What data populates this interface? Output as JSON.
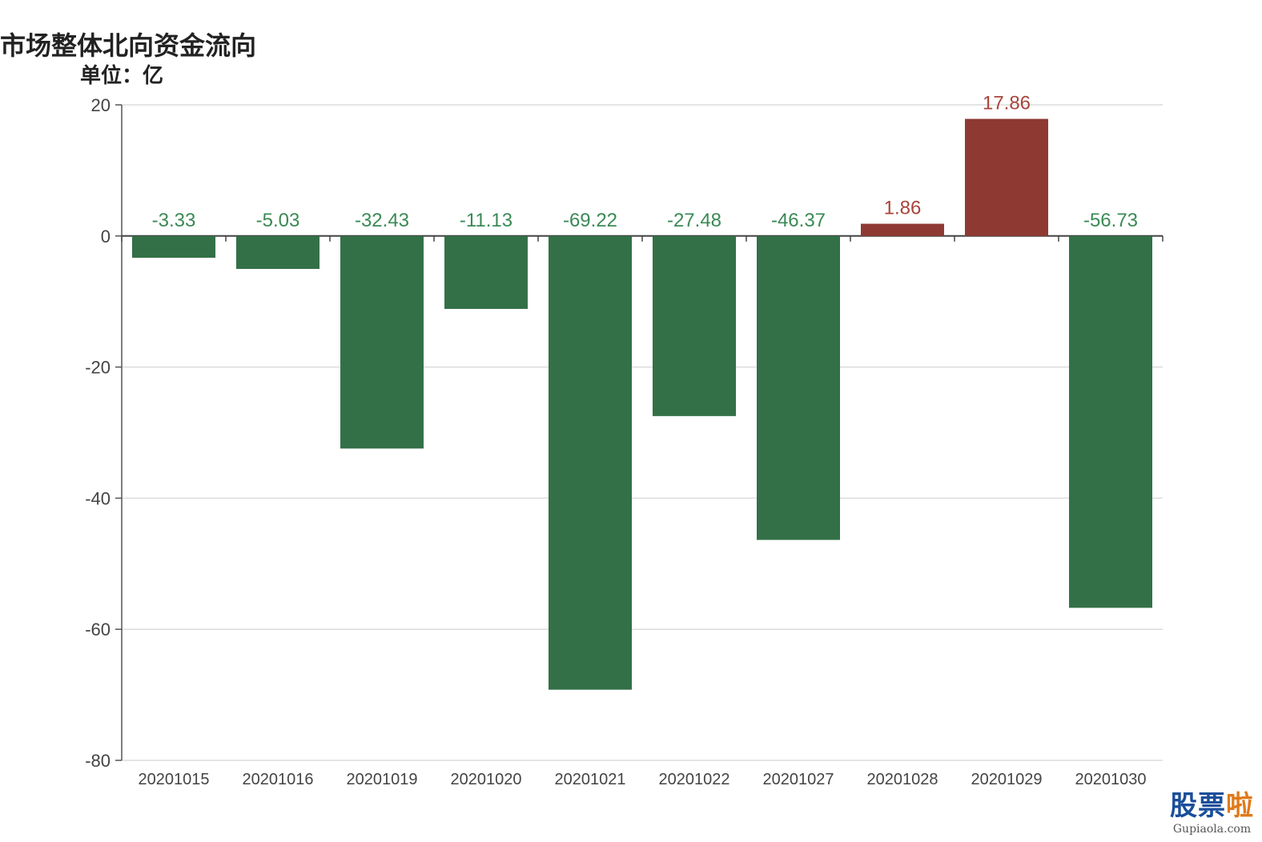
{
  "chart_data": {
    "type": "bar",
    "title": "市场整体北向资金流向",
    "unit_label": "单位：亿",
    "categories": [
      "20201015",
      "20201016",
      "20201019",
      "20201020",
      "20201021",
      "20201022",
      "20201027",
      "20201028",
      "20201029",
      "20201030"
    ],
    "values": [
      -3.33,
      -5.03,
      -32.43,
      -11.13,
      -69.22,
      -27.48,
      -46.37,
      1.86,
      17.86,
      -56.73
    ],
    "value_labels": [
      "-3.33",
      "-5.03",
      "-32.43",
      "-11.13",
      "-69.22",
      "-27.48",
      "-46.37",
      "1.86",
      "17.86",
      "-56.73"
    ],
    "ylim": [
      -80,
      20
    ],
    "yticks": [
      20,
      0,
      -20,
      -40,
      -60,
      -80
    ],
    "grid": true,
    "colors": {
      "positive": "#8e3a33",
      "negative": "#337047",
      "positive_label": "#a8443c",
      "negative_label": "#3a8a55"
    }
  },
  "watermark": {
    "main_a": "股票",
    "main_b": "啦",
    "sub": "Gupiaola.com"
  }
}
